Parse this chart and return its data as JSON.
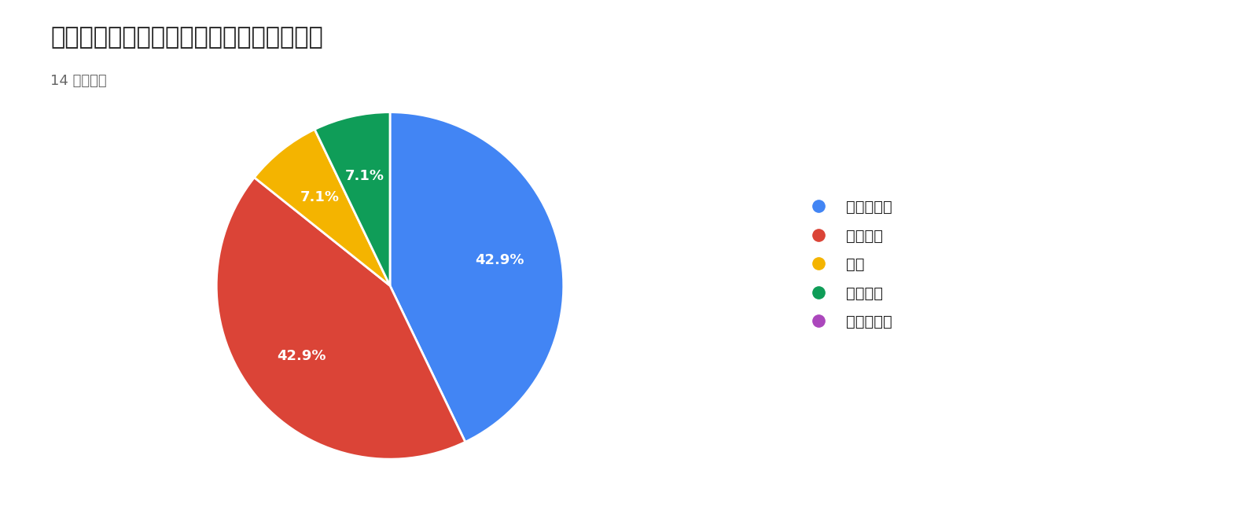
{
  "title": "今回の交流会の満足度をお聞かせください",
  "subtitle": "14 件の回答",
  "labels": [
    "とても満足",
    "やや満足",
    "普通",
    "やや不満",
    "とても不満"
  ],
  "values": [
    6,
    6,
    1,
    1,
    0
  ],
  "colors": [
    "#4285F4",
    "#DB4437",
    "#F4B400",
    "#0F9D58",
    "#AB47BC"
  ],
  "text_color": "#212121",
  "subtitle_color": "#666666",
  "background_color": "#ffffff",
  "title_fontsize": 22,
  "subtitle_fontsize": 13,
  "legend_fontsize": 14,
  "autopct_fontsize": 13
}
